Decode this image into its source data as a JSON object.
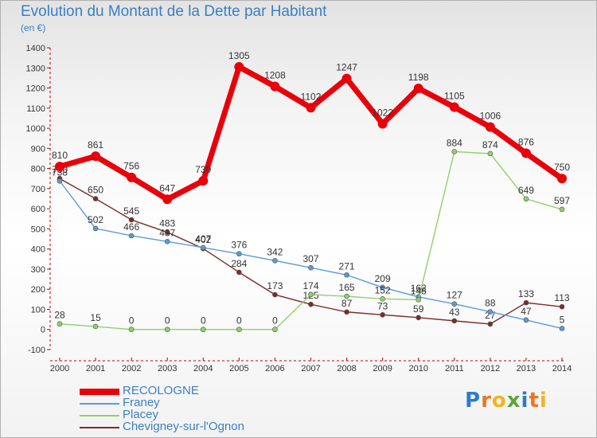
{
  "header": {
    "title": "Evolution du Montant de la Dette par Habitant",
    "unit": "(en €)"
  },
  "logo": {
    "letters": [
      "P",
      "r",
      "o",
      "x",
      "i",
      "t",
      "i"
    ],
    "colors": [
      "#2e7bcf",
      "#e87722",
      "#f2b51c",
      "#5aa832",
      "#2e7bcf",
      "#e87722",
      "#f2b51c"
    ]
  },
  "chart_data": {
    "type": "line",
    "title": "Evolution du Montant de la Dette par Habitant",
    "ylabel": "(en €)",
    "xlabel": "",
    "x": [
      "2000",
      "2001",
      "2002",
      "2003",
      "2004",
      "2005",
      "2006",
      "2007",
      "2008",
      "2009",
      "2010",
      "2011",
      "2012",
      "2013",
      "2014"
    ],
    "ylim": [
      -100,
      1400
    ],
    "yticks": [
      -100,
      0,
      100,
      200,
      300,
      400,
      500,
      600,
      700,
      800,
      900,
      1000,
      1100,
      1200,
      1300,
      1400
    ],
    "grid": false,
    "legend_position": "bottom-left",
    "series": [
      {
        "name": "RECOLOGNE",
        "color": "#e8000b",
        "values": [
          810,
          861,
          756,
          647,
          739,
          1305,
          1208,
          1102,
          1247,
          1022,
          1198,
          1105,
          1006,
          876,
          750
        ]
      },
      {
        "name": "Franey",
        "color": "#5b9bd5",
        "values": [
          738,
          502,
          466,
          437,
          407,
          376,
          342,
          307,
          271,
          209,
          162,
          127,
          88,
          47,
          5
        ]
      },
      {
        "name": "Placey",
        "color": "#8fd16a",
        "values": [
          28,
          15,
          0,
          0,
          0,
          0,
          0,
          174,
          165,
          152,
          148,
          884,
          874,
          649,
          597
        ]
      },
      {
        "name": "Chevigney-sur-l'Ognon",
        "color": "#7b2d26",
        "values": [
          750,
          650,
          545,
          483,
          402,
          284,
          173,
          125,
          87,
          73,
          59,
          43,
          27,
          133,
          113
        ]
      }
    ]
  }
}
